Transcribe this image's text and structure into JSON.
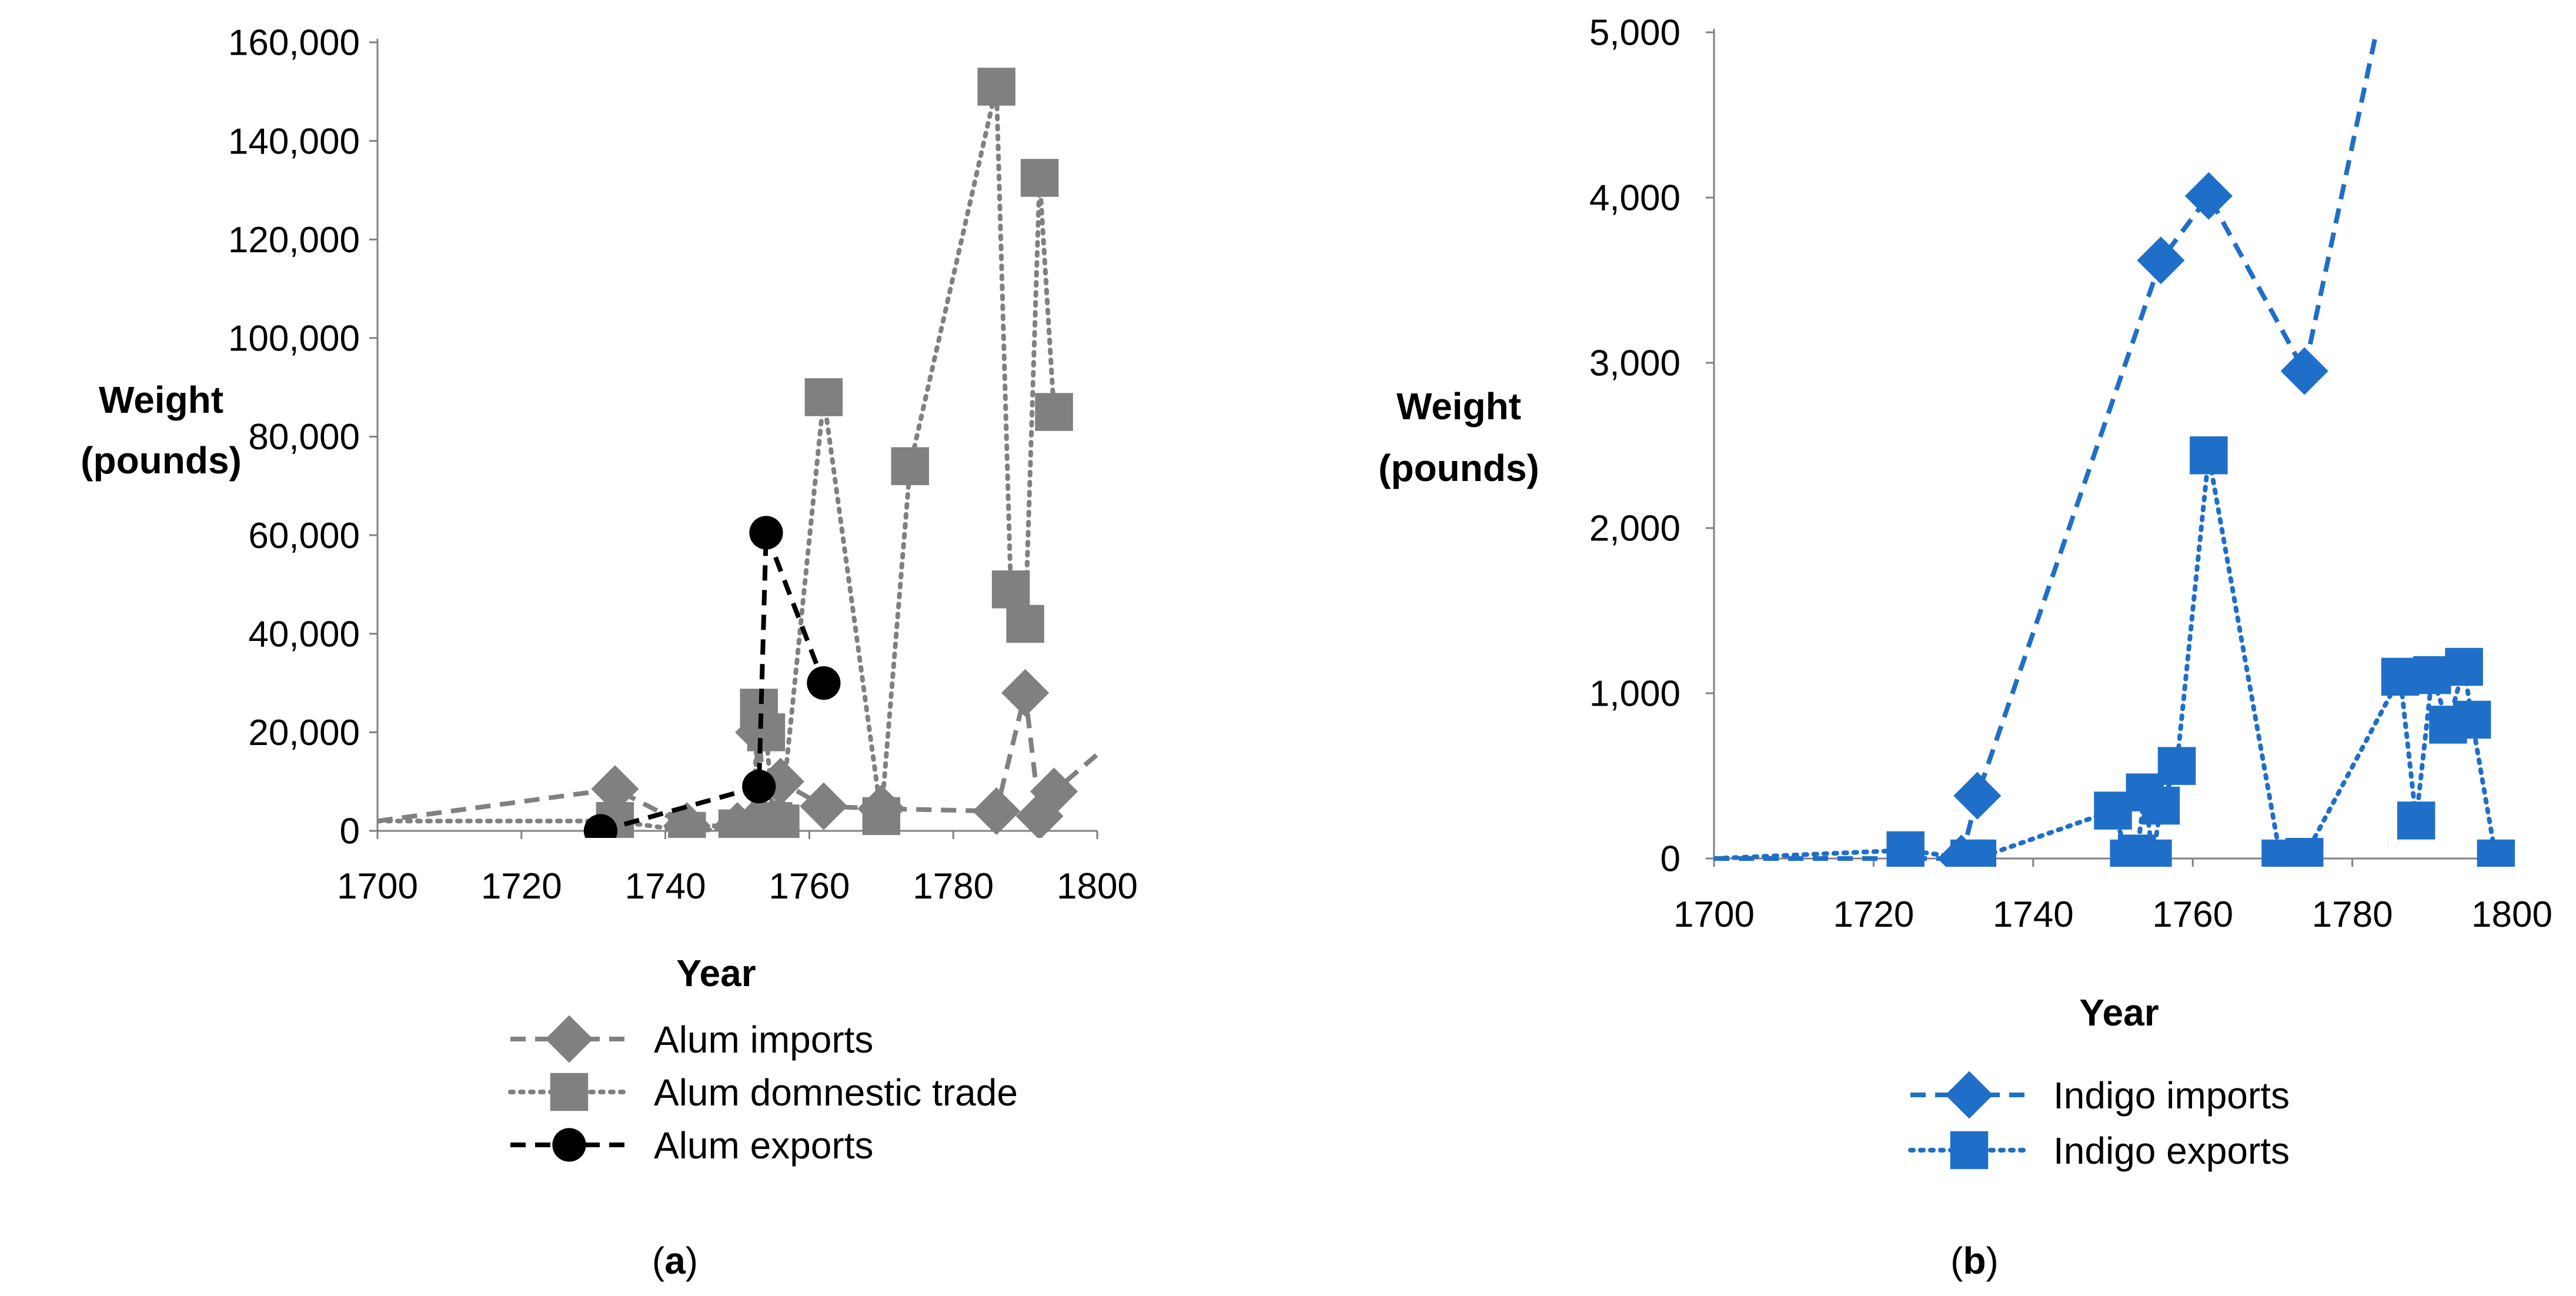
{
  "chart_data": [
    {
      "panel_label": "a",
      "type": "line",
      "xlabel": "Year",
      "ylabel_lines": [
        "Weight",
        "(pounds)"
      ],
      "xlim": [
        1700,
        1800
      ],
      "ylim": [
        0,
        160000
      ],
      "xticks": [
        1700,
        1720,
        1740,
        1760,
        1780,
        1800
      ],
      "yticks": [
        0,
        20000,
        40000,
        60000,
        80000,
        100000,
        120000,
        140000,
        160000
      ],
      "ytick_labels": [
        "0",
        "20,000",
        "40,000",
        "60,000",
        "80,000",
        "100,000",
        "120,000",
        "140,000",
        "160,000"
      ],
      "legend": "bottom",
      "colors": {
        "Alum imports": "#808080",
        "Alum domnestic trade": "#808080",
        "Alum exports": "#000000"
      },
      "series": [
        {
          "name": "Alum imports",
          "marker": "diamond",
          "dash": "dashed",
          "x": [
            1700,
            1733,
            1743,
            1750,
            1752,
            1753,
            1754,
            1755,
            1756,
            1762,
            1770,
            1786,
            1790,
            1792,
            1794,
            1800
          ],
          "y": [
            2000,
            8500,
            1000,
            1000,
            1000,
            20000,
            1000,
            1500,
            10000,
            5000,
            4500,
            4000,
            28000,
            3000,
            8000,
            15500
          ]
        },
        {
          "name": "Alum domnestic trade",
          "marker": "square",
          "dash": "dotted",
          "x": [
            1700,
            1733,
            1743,
            1750,
            1752,
            1753,
            1754,
            1755,
            1756,
            1762,
            1770,
            1774,
            1786,
            1788,
            1790,
            1792,
            1794
          ],
          "y": [
            2000,
            2000,
            0,
            500,
            500,
            25000,
            20000,
            2000,
            1500,
            88000,
            3000,
            74000,
            151000,
            49000,
            42000,
            132500,
            85000
          ]
        },
        {
          "name": "Alum exports",
          "marker": "circle",
          "dash": "dashed",
          "x": [
            1731,
            1753,
            1754,
            1762
          ],
          "y": [
            0,
            9000,
            60500,
            30000
          ]
        }
      ]
    },
    {
      "panel_label": "b",
      "type": "line",
      "xlabel": "Year",
      "ylabel_lines": [
        "Weight",
        "(pounds)"
      ],
      "xlim": [
        1700,
        1800
      ],
      "ylim": [
        0,
        5000
      ],
      "xticks": [
        1700,
        1720,
        1740,
        1760,
        1780,
        1800
      ],
      "yticks": [
        0,
        1000,
        2000,
        3000,
        4000,
        5000
      ],
      "ytick_labels": [
        "0",
        "1,000",
        "2,000",
        "3,000",
        "4,000",
        "5,000"
      ],
      "legend": "bottom",
      "colors": {
        "Indigo imports": "#1f6fc8",
        "Indigo exports": "#1f6fc8"
      },
      "series": [
        {
          "name": "Indigo imports",
          "marker": "diamond",
          "dash": "dashed",
          "x": [
            1700,
            1731,
            1733,
            1756,
            1762,
            1774,
            1783
          ],
          "y": [
            0,
            0,
            380,
            3620,
            4010,
            2950,
            5000
          ]
        },
        {
          "name": "Indigo exports",
          "marker": "square",
          "dash": "dotted",
          "x": [
            1700,
            1724,
            1732,
            1733,
            1750,
            1752,
            1753,
            1754,
            1755,
            1756,
            1758,
            1762,
            1771,
            1774,
            1786,
            1788,
            1790,
            1792,
            1794,
            1795,
            1798,
            1800
          ],
          "y": [
            0,
            50,
            0,
            0,
            290,
            0,
            30,
            400,
            0,
            320,
            560,
            2440,
            0,
            10,
            1100,
            230,
            1110,
            810,
            1160,
            840,
            0,
            0
          ]
        }
      ]
    }
  ]
}
